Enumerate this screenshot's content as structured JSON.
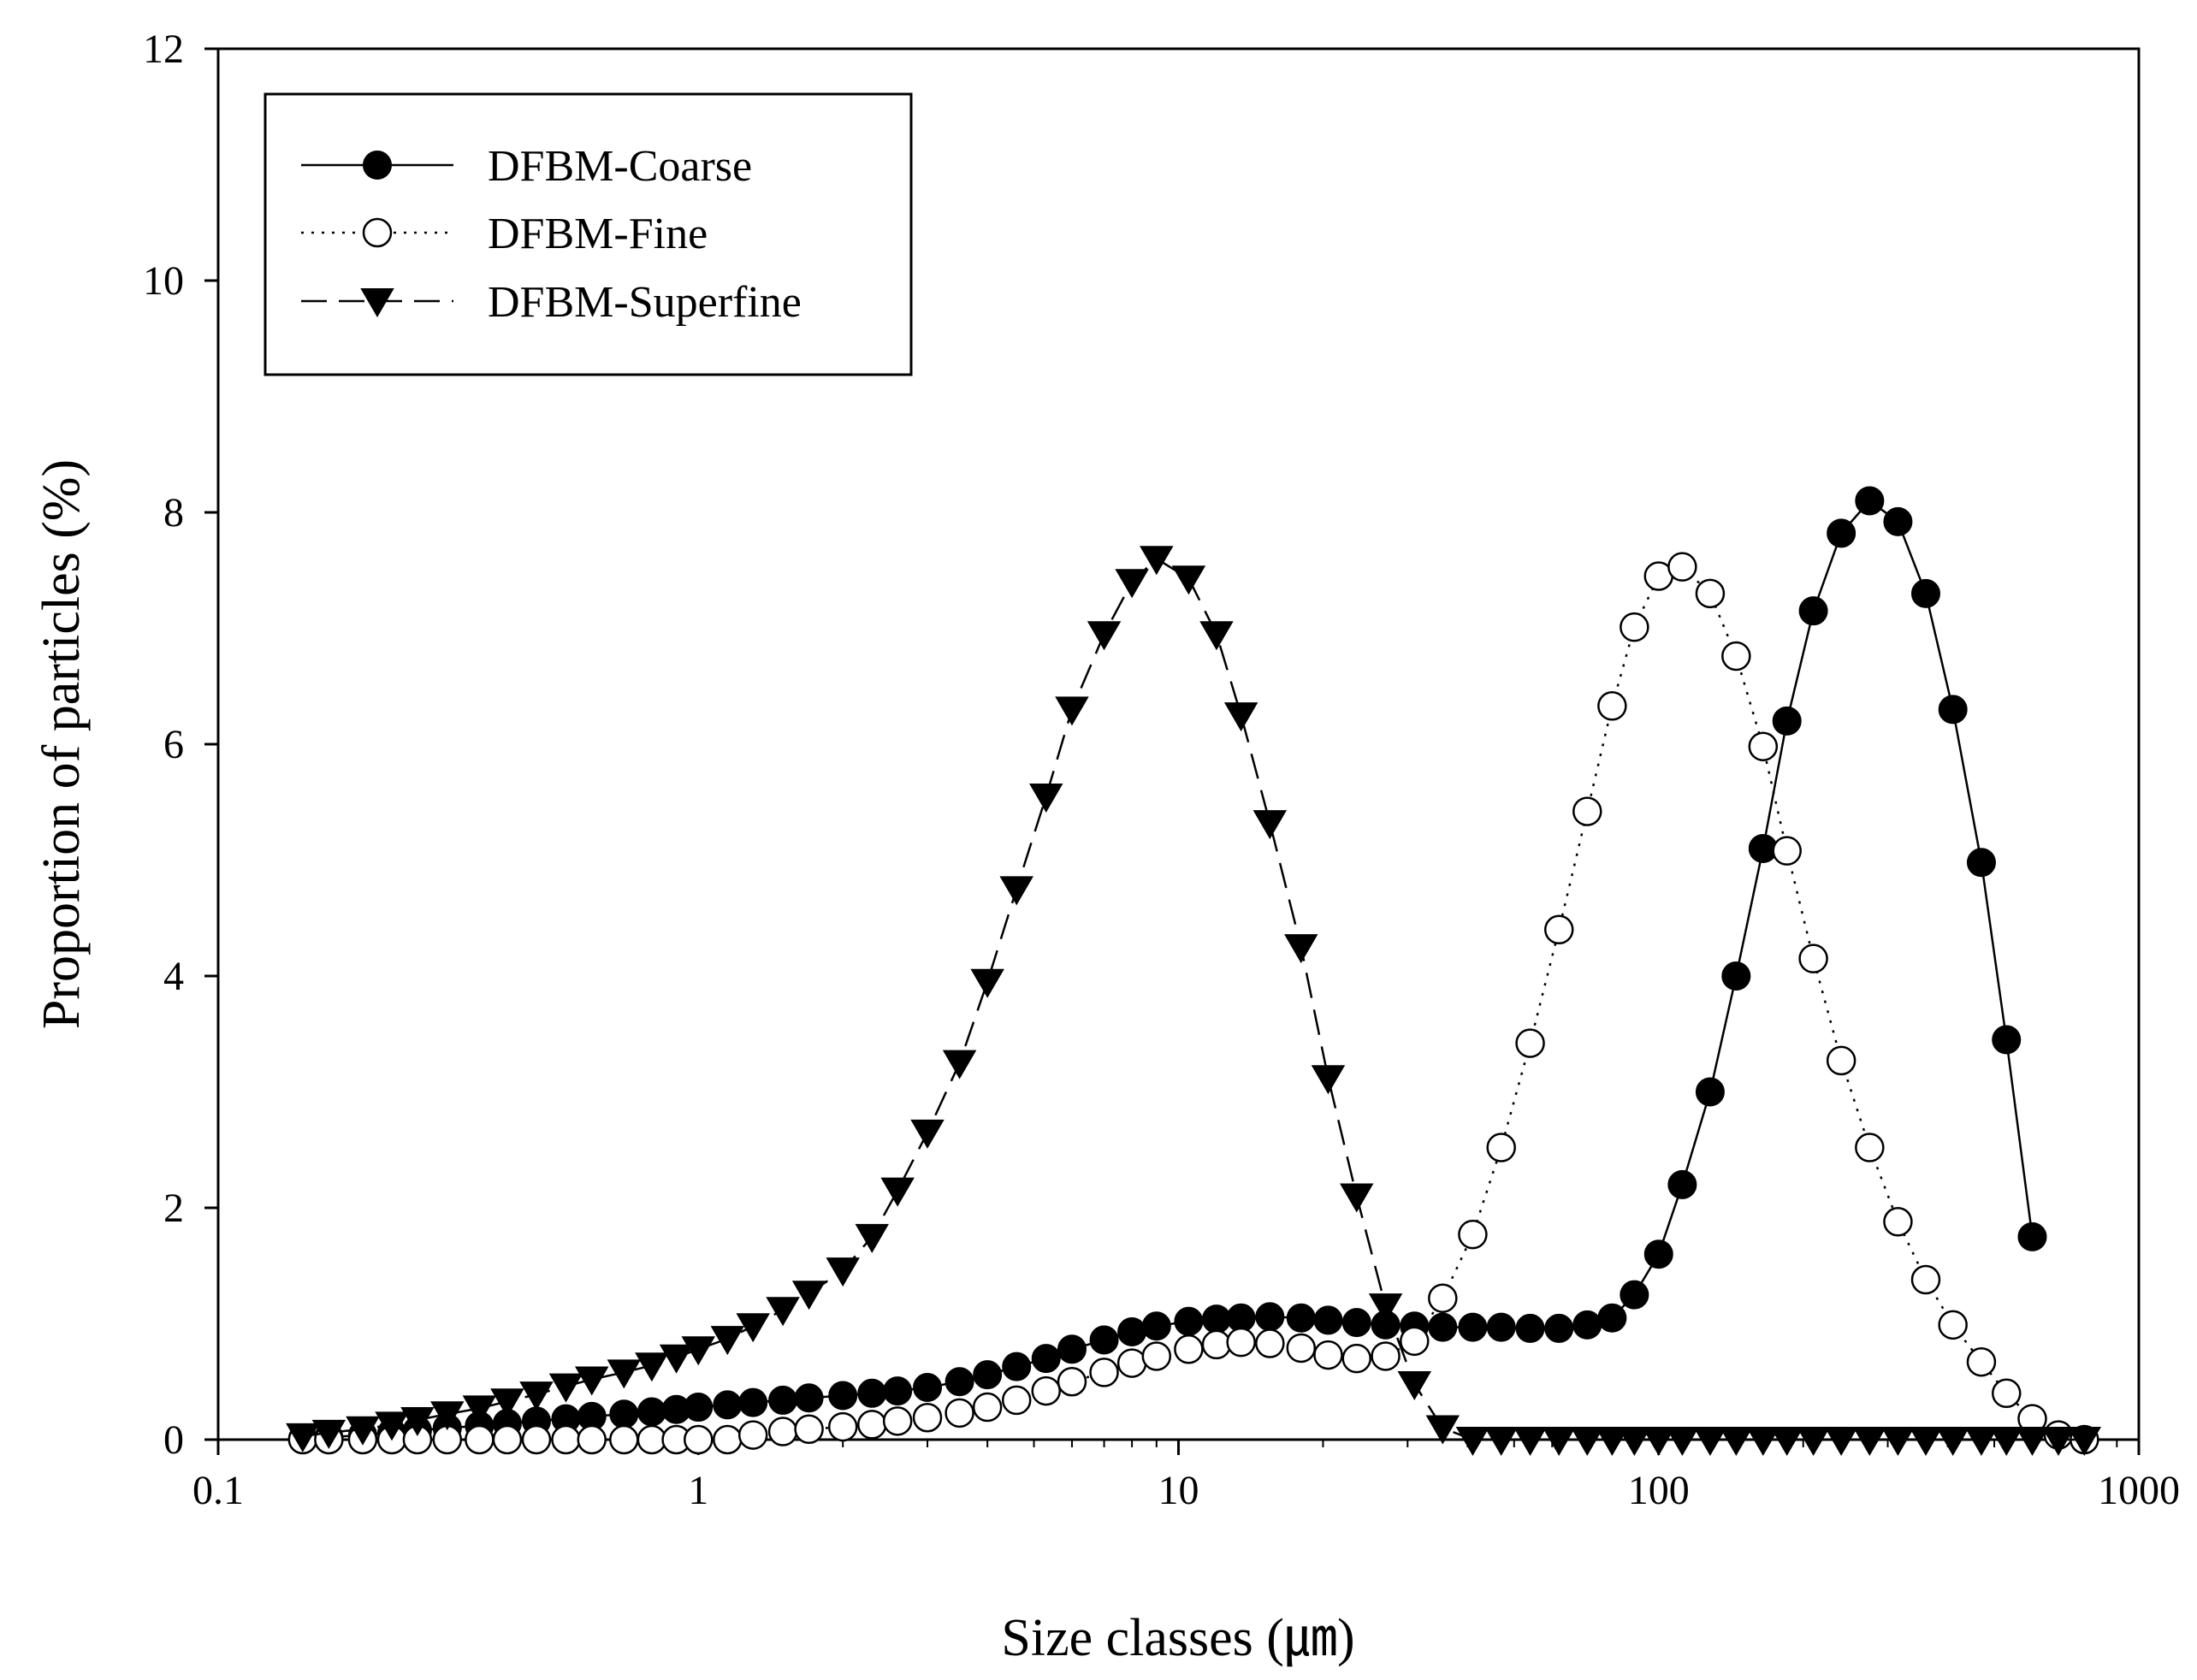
{
  "chart_data": {
    "type": "scatter",
    "xlabel": "Size classes (㎛)",
    "ylabel": "Proportion of particles (%)",
    "xscale": "log",
    "xlim": [
      0.1,
      1000
    ],
    "ylim": [
      0,
      12
    ],
    "xticks": [
      "0.1",
      "1",
      "10",
      "100",
      "1000"
    ],
    "yticks": [
      "0",
      "2",
      "4",
      "6",
      "8",
      "10",
      "12"
    ],
    "grid": false,
    "legend": "top-left",
    "series": [
      {
        "name": "DFBM-Coarse",
        "marker": "filled-circle",
        "line": "solid",
        "points": [
          [
            0.15,
            0.01
          ],
          [
            0.17,
            0.02
          ],
          [
            0.2,
            0.04
          ],
          [
            0.23,
            0.06
          ],
          [
            0.26,
            0.08
          ],
          [
            0.3,
            0.1
          ],
          [
            0.35,
            0.12
          ],
          [
            0.4,
            0.14
          ],
          [
            0.46,
            0.16
          ],
          [
            0.53,
            0.18
          ],
          [
            0.6,
            0.2
          ],
          [
            0.7,
            0.22
          ],
          [
            0.8,
            0.24
          ],
          [
            0.9,
            0.26
          ],
          [
            1.0,
            0.28
          ],
          [
            1.15,
            0.3
          ],
          [
            1.3,
            0.32
          ],
          [
            1.5,
            0.34
          ],
          [
            1.7,
            0.36
          ],
          [
            2.0,
            0.38
          ],
          [
            2.3,
            0.4
          ],
          [
            2.6,
            0.42
          ],
          [
            3.0,
            0.45
          ],
          [
            3.5,
            0.5
          ],
          [
            4.0,
            0.56
          ],
          [
            4.6,
            0.63
          ],
          [
            5.3,
            0.7
          ],
          [
            6.0,
            0.78
          ],
          [
            7.0,
            0.86
          ],
          [
            8.0,
            0.93
          ],
          [
            9.0,
            0.98
          ],
          [
            10.5,
            1.02
          ],
          [
            12.0,
            1.04
          ],
          [
            13.5,
            1.05
          ],
          [
            15.5,
            1.06
          ],
          [
            18.0,
            1.05
          ],
          [
            20.5,
            1.03
          ],
          [
            23.5,
            1.01
          ],
          [
            27.0,
            0.99
          ],
          [
            31.0,
            0.98
          ],
          [
            35.5,
            0.97
          ],
          [
            41.0,
            0.97
          ],
          [
            47.0,
            0.97
          ],
          [
            54.0,
            0.96
          ],
          [
            62.0,
            0.96
          ],
          [
            71.0,
            0.99
          ],
          [
            80.0,
            1.05
          ],
          [
            89.0,
            1.25
          ],
          [
            100.0,
            1.6
          ],
          [
            112.0,
            2.2
          ],
          [
            128.0,
            3.0
          ],
          [
            145.0,
            4.0
          ],
          [
            165.0,
            5.1
          ],
          [
            185.0,
            6.2
          ],
          [
            210.0,
            7.15
          ],
          [
            240.0,
            7.82
          ],
          [
            275.0,
            8.1
          ],
          [
            315.0,
            7.92
          ],
          [
            360.0,
            7.3
          ],
          [
            410.0,
            6.3
          ],
          [
            470.0,
            4.98
          ],
          [
            530.0,
            3.45
          ],
          [
            600.0,
            1.75
          ]
        ]
      },
      {
        "name": "DFBM-Fine",
        "marker": "open-circle",
        "line": "dotted",
        "points": [
          [
            0.15,
            0.0
          ],
          [
            0.17,
            0.0
          ],
          [
            0.2,
            0.0
          ],
          [
            0.23,
            0.0
          ],
          [
            0.26,
            0.0
          ],
          [
            0.3,
            0.0
          ],
          [
            0.35,
            0.0
          ],
          [
            0.4,
            0.0
          ],
          [
            0.46,
            0.0
          ],
          [
            0.53,
            0.0
          ],
          [
            0.6,
            0.0
          ],
          [
            0.7,
            0.0
          ],
          [
            0.8,
            0.0
          ],
          [
            0.9,
            0.0
          ],
          [
            1.0,
            0.0
          ],
          [
            1.15,
            0.0
          ],
          [
            1.3,
            0.04
          ],
          [
            1.5,
            0.07
          ],
          [
            1.7,
            0.09
          ],
          [
            2.0,
            0.11
          ],
          [
            2.3,
            0.13
          ],
          [
            2.6,
            0.16
          ],
          [
            3.0,
            0.19
          ],
          [
            3.5,
            0.23
          ],
          [
            4.0,
            0.28
          ],
          [
            4.6,
            0.34
          ],
          [
            5.3,
            0.42
          ],
          [
            6.0,
            0.5
          ],
          [
            7.0,
            0.58
          ],
          [
            8.0,
            0.66
          ],
          [
            9.0,
            0.72
          ],
          [
            10.5,
            0.78
          ],
          [
            12.0,
            0.82
          ],
          [
            13.5,
            0.84
          ],
          [
            15.5,
            0.83
          ],
          [
            18.0,
            0.79
          ],
          [
            20.5,
            0.73
          ],
          [
            23.5,
            0.7
          ],
          [
            27.0,
            0.72
          ],
          [
            31.0,
            0.85
          ],
          [
            35.5,
            1.22
          ],
          [
            41.0,
            1.77
          ],
          [
            47.0,
            2.52
          ],
          [
            54.0,
            3.42
          ],
          [
            62.0,
            4.4
          ],
          [
            71.0,
            5.42
          ],
          [
            80.0,
            6.33
          ],
          [
            89.0,
            7.01
          ],
          [
            100.0,
            7.45
          ],
          [
            112.0,
            7.53
          ],
          [
            128.0,
            7.3
          ],
          [
            145.0,
            6.76
          ],
          [
            165.0,
            5.98
          ],
          [
            185.0,
            5.08
          ],
          [
            210.0,
            4.15
          ],
          [
            240.0,
            3.27
          ],
          [
            275.0,
            2.52
          ],
          [
            315.0,
            1.88
          ],
          [
            360.0,
            1.38
          ],
          [
            410.0,
            0.99
          ],
          [
            470.0,
            0.67
          ],
          [
            530.0,
            0.4
          ],
          [
            600.0,
            0.18
          ],
          [
            680.0,
            0.04
          ],
          [
            770.0,
            0.0
          ]
        ]
      },
      {
        "name": "DFBM-Superfine",
        "marker": "filled-triangle-down",
        "line": "dashed",
        "points": [
          [
            0.15,
            0.03
          ],
          [
            0.17,
            0.06
          ],
          [
            0.2,
            0.09
          ],
          [
            0.23,
            0.13
          ],
          [
            0.26,
            0.17
          ],
          [
            0.3,
            0.22
          ],
          [
            0.35,
            0.27
          ],
          [
            0.4,
            0.33
          ],
          [
            0.46,
            0.39
          ],
          [
            0.53,
            0.46
          ],
          [
            0.6,
            0.52
          ],
          [
            0.7,
            0.58
          ],
          [
            0.8,
            0.64
          ],
          [
            0.9,
            0.71
          ],
          [
            1.0,
            0.78
          ],
          [
            1.15,
            0.87
          ],
          [
            1.3,
            0.98
          ],
          [
            1.5,
            1.12
          ],
          [
            1.7,
            1.26
          ],
          [
            2.0,
            1.46
          ],
          [
            2.3,
            1.75
          ],
          [
            2.6,
            2.15
          ],
          [
            3.0,
            2.65
          ],
          [
            3.5,
            3.25
          ],
          [
            4.0,
            3.95
          ],
          [
            4.6,
            4.75
          ],
          [
            5.3,
            5.55
          ],
          [
            6.0,
            6.3
          ],
          [
            7.0,
            6.95
          ],
          [
            8.0,
            7.4
          ],
          [
            9.0,
            7.6
          ],
          [
            10.5,
            7.43
          ],
          [
            12.0,
            6.95
          ],
          [
            13.5,
            6.25
          ],
          [
            15.5,
            5.32
          ],
          [
            18.0,
            4.25
          ],
          [
            20.5,
            3.12
          ],
          [
            23.5,
            2.1
          ],
          [
            27.0,
            1.15
          ],
          [
            31.0,
            0.48
          ],
          [
            35.5,
            0.1
          ],
          [
            41.0,
            0.0
          ],
          [
            47.0,
            0.0
          ],
          [
            54.0,
            0.0
          ],
          [
            62.0,
            0.0
          ],
          [
            71.0,
            0.0
          ],
          [
            80.0,
            0.0
          ],
          [
            89.0,
            0.0
          ],
          [
            100.0,
            0.0
          ],
          [
            112.0,
            0.0
          ],
          [
            128.0,
            0.0
          ],
          [
            145.0,
            0.0
          ],
          [
            165.0,
            0.0
          ],
          [
            185.0,
            0.0
          ],
          [
            210.0,
            0.0
          ],
          [
            240.0,
            0.0
          ],
          [
            275.0,
            0.0
          ],
          [
            315.0,
            0.0
          ],
          [
            360.0,
            0.0
          ],
          [
            410.0,
            0.0
          ],
          [
            470.0,
            0.0
          ],
          [
            530.0,
            0.0
          ],
          [
            600.0,
            0.0
          ],
          [
            680.0,
            0.0
          ],
          [
            770.0,
            0.0
          ]
        ]
      }
    ]
  }
}
